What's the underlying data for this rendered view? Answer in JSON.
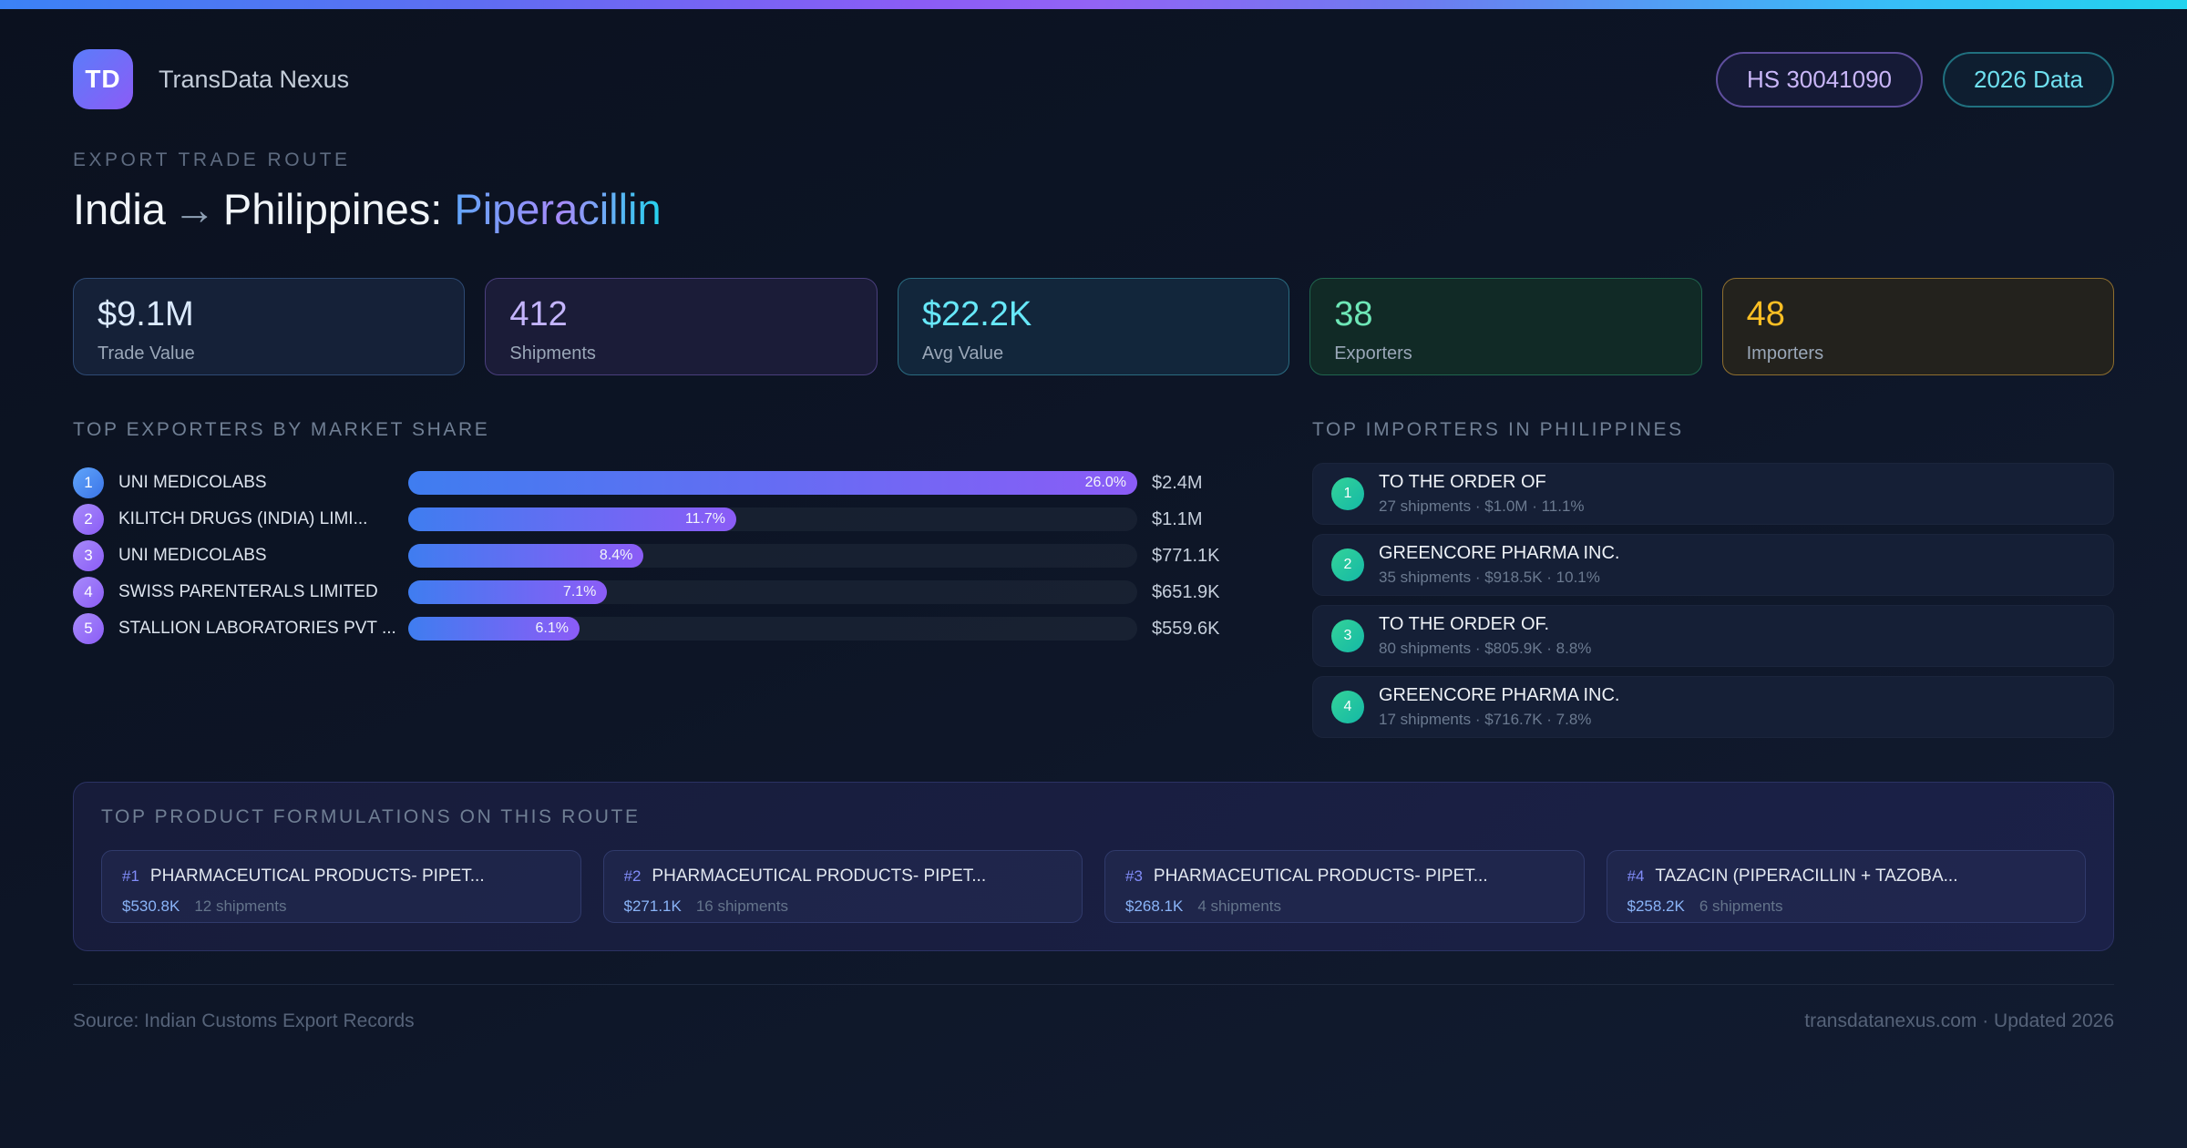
{
  "app": {
    "logo": "TD",
    "title": "TransData Nexus"
  },
  "badges": {
    "hs_code": "HS 30041090",
    "year": "2026 Data"
  },
  "header": {
    "eyebrow": "EXPORT TRADE ROUTE",
    "origin": "India",
    "arrow": "→",
    "destination": "Philippines:",
    "product": "Piperacillin"
  },
  "stats": [
    {
      "value": "$9.1M",
      "label": "Trade Value"
    },
    {
      "value": "412",
      "label": "Shipments"
    },
    {
      "value": "$22.2K",
      "label": "Avg Value"
    },
    {
      "value": "38",
      "label": "Exporters"
    },
    {
      "value": "48",
      "label": "Importers"
    }
  ],
  "exporters": {
    "title": "TOP EXPORTERS BY MARKET SHARE",
    "items": [
      {
        "rank": "1",
        "name": "UNI MEDICOLABS",
        "share_label": "26.0%",
        "bar_width": "100%",
        "value": "$2.4M"
      },
      {
        "rank": "2",
        "name": "KILITCH DRUGS (INDIA) LIMI...",
        "share_label": "11.7%",
        "bar_width": "45%",
        "value": "$1.1M"
      },
      {
        "rank": "3",
        "name": "UNI MEDICOLABS",
        "share_label": "8.4%",
        "bar_width": "32.3%",
        "value": "$771.1K"
      },
      {
        "rank": "4",
        "name": "SWISS PARENTERALS LIMITED",
        "share_label": "7.1%",
        "bar_width": "27.3%",
        "value": "$651.9K"
      },
      {
        "rank": "5",
        "name": "STALLION LABORATORIES PVT ...",
        "share_label": "6.1%",
        "bar_width": "23.5%",
        "value": "$559.6K"
      }
    ]
  },
  "importers": {
    "title": "TOP IMPORTERS IN PHILIPPINES",
    "items": [
      {
        "rank": "1",
        "name": "TO THE ORDER OF",
        "meta": "27 shipments · $1.0M · 11.1%"
      },
      {
        "rank": "2",
        "name": "GREENCORE PHARMA INC.",
        "meta": "35 shipments · $918.5K · 10.1%"
      },
      {
        "rank": "3",
        "name": "TO THE ORDER OF.",
        "meta": "80 shipments · $805.9K · 8.8%"
      },
      {
        "rank": "4",
        "name": "GREENCORE PHARMA INC.",
        "meta": "17 shipments · $716.7K · 7.8%"
      }
    ]
  },
  "formulations": {
    "title": "TOP PRODUCT FORMULATIONS ON THIS ROUTE",
    "items": [
      {
        "rank": "#1",
        "name": "PHARMACEUTICAL PRODUCTS- PIPET...",
        "value": "$530.8K",
        "shipments": "12 shipments"
      },
      {
        "rank": "#2",
        "name": "PHARMACEUTICAL PRODUCTS- PIPET...",
        "value": "$271.1K",
        "shipments": "16 shipments"
      },
      {
        "rank": "#3",
        "name": "PHARMACEUTICAL PRODUCTS- PIPET...",
        "value": "$268.1K",
        "shipments": "4 shipments"
      },
      {
        "rank": "#4",
        "name": "TAZACIN (PIPERACILLIN + TAZOBA...",
        "value": "$258.2K",
        "shipments": "6 shipments"
      }
    ]
  },
  "footer": {
    "source": "Source: Indian Customs Export Records",
    "site": "transdatanexus.com · Updated 2026"
  },
  "chart_data": {
    "type": "bar",
    "title": "TOP EXPORTERS BY MARKET SHARE",
    "categories": [
      "UNI MEDICOLABS",
      "KILITCH DRUGS (INDIA) LIMI...",
      "UNI MEDICOLABS",
      "SWISS PARENTERALS LIMITED",
      "STALLION LABORATORIES PVT ..."
    ],
    "values": [
      26.0,
      11.7,
      8.4,
      7.1,
      6.1
    ],
    "value_labels": [
      "$2.4M",
      "$1.1M",
      "$771.1K",
      "$651.9K",
      "$559.6K"
    ],
    "unit": "percent market share",
    "xlim": [
      0,
      26.0
    ]
  },
  "colors": {
    "accent_blue": "#3b82f6",
    "accent_purple": "#8b5cf6",
    "accent_cyan": "#22d3ee",
    "stat_blue": "#dbeafe",
    "stat_purple": "#c4b5fd",
    "stat_cyan": "#67e8f9",
    "stat_green": "#6ee7b7",
    "stat_amber": "#fbbf24",
    "importer_badge": "#14b8a6",
    "background": "#0d1526"
  }
}
